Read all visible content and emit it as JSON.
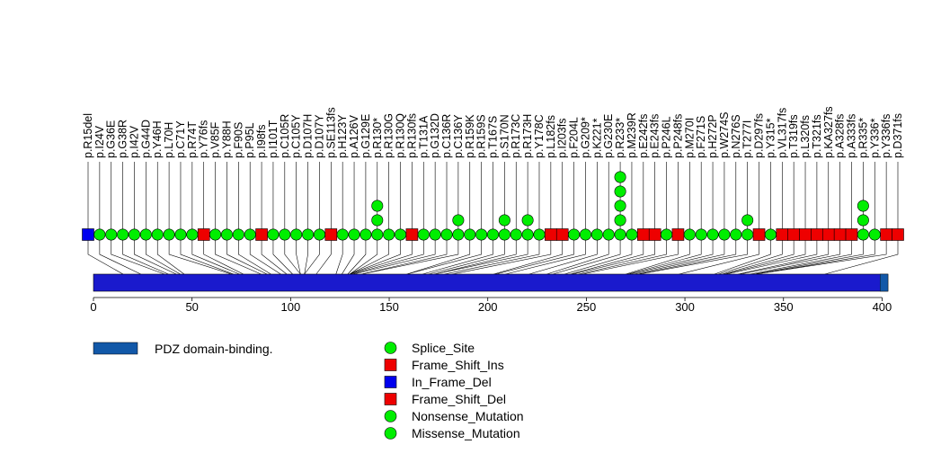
{
  "chart_data": {
    "type": "lollipop",
    "title": "",
    "xlabel": "",
    "ylabel": "",
    "xlim": [
      0,
      403
    ],
    "x_ticks": [
      0,
      50,
      100,
      150,
      200,
      250,
      300,
      350,
      400
    ],
    "protein_length": 403,
    "domains": [
      {
        "name": "PDZ domain-binding.",
        "start": 399,
        "end": 403,
        "color": "#1258A8"
      }
    ],
    "legend": {
      "domain_entries": [
        {
          "label": "PDZ domain-binding.",
          "color": "#1258A8"
        }
      ],
      "mutation_entries": [
        {
          "label": "Splice_Site",
          "shape": "circle",
          "color": "#00EE00"
        },
        {
          "label": "Frame_Shift_Ins",
          "shape": "square",
          "color": "#EE0000"
        },
        {
          "label": "In_Frame_Del",
          "shape": "square",
          "color": "#0000EE"
        },
        {
          "label": "Frame_Shift_Del",
          "shape": "square",
          "color": "#EE0000"
        },
        {
          "label": "Nonsense_Mutation",
          "shape": "circle",
          "color": "#00EE00"
        },
        {
          "label": "Missense_Mutation",
          "shape": "circle",
          "color": "#00EE00"
        }
      ]
    },
    "mutations": [
      {
        "label": "p.R15del",
        "pos": 15,
        "count": 1,
        "shape": "square",
        "color": "#0000EE"
      },
      {
        "label": "p.I24V",
        "pos": 24,
        "count": 1,
        "shape": "circle",
        "color": "#00EE00"
      },
      {
        "label": "p.G36E",
        "pos": 36,
        "count": 1,
        "shape": "circle",
        "color": "#00EE00"
      },
      {
        "label": "p.G38R",
        "pos": 38,
        "count": 1,
        "shape": "circle",
        "color": "#00EE00"
      },
      {
        "label": "p.I42V",
        "pos": 42,
        "count": 1,
        "shape": "circle",
        "color": "#00EE00"
      },
      {
        "label": "p.G44D",
        "pos": 44,
        "count": 1,
        "shape": "circle",
        "color": "#00EE00"
      },
      {
        "label": "p.Y46H",
        "pos": 46,
        "count": 1,
        "shape": "circle",
        "color": "#00EE00"
      },
      {
        "label": "p.L70H",
        "pos": 70,
        "count": 1,
        "shape": "circle",
        "color": "#00EE00"
      },
      {
        "label": "p.C71Y",
        "pos": 71,
        "count": 1,
        "shape": "circle",
        "color": "#00EE00"
      },
      {
        "label": "p.R74T",
        "pos": 74,
        "count": 1,
        "shape": "circle",
        "color": "#00EE00"
      },
      {
        "label": "p.Y76fs",
        "pos": 76,
        "count": 1,
        "shape": "square",
        "color": "#EE0000"
      },
      {
        "label": "p.V85F",
        "pos": 85,
        "count": 1,
        "shape": "circle",
        "color": "#00EE00"
      },
      {
        "label": "p.Y88H",
        "pos": 88,
        "count": 1,
        "shape": "circle",
        "color": "#00EE00"
      },
      {
        "label": "p.F90S",
        "pos": 90,
        "count": 1,
        "shape": "circle",
        "color": "#00EE00"
      },
      {
        "label": "p.P95L",
        "pos": 95,
        "count": 1,
        "shape": "circle",
        "color": "#00EE00"
      },
      {
        "label": "p.I98fs",
        "pos": 98,
        "count": 1,
        "shape": "square",
        "color": "#EE0000"
      },
      {
        "label": "p.I101T",
        "pos": 101,
        "count": 1,
        "shape": "circle",
        "color": "#00EE00"
      },
      {
        "label": "p.C105R",
        "pos": 105,
        "count": 1,
        "shape": "circle",
        "color": "#00EE00"
      },
      {
        "label": "p.C105Y",
        "pos": 105,
        "count": 1,
        "shape": "circle",
        "color": "#00EE00"
      },
      {
        "label": "p.D107H",
        "pos": 107,
        "count": 1,
        "shape": "circle",
        "color": "#00EE00"
      },
      {
        "label": "p.D107Y",
        "pos": 107,
        "count": 1,
        "shape": "circle",
        "color": "#00EE00"
      },
      {
        "label": "p.SE113fs",
        "pos": 113,
        "count": 1,
        "shape": "square",
        "color": "#EE0000"
      },
      {
        "label": "p.H123Y",
        "pos": 123,
        "count": 1,
        "shape": "circle",
        "color": "#00EE00"
      },
      {
        "label": "p.A126V",
        "pos": 126,
        "count": 1,
        "shape": "circle",
        "color": "#00EE00"
      },
      {
        "label": "p.G129E",
        "pos": 129,
        "count": 1,
        "shape": "circle",
        "color": "#00EE00"
      },
      {
        "label": "p.R130*",
        "pos": 130,
        "count": 3,
        "shape": "circle",
        "color": "#00EE00"
      },
      {
        "label": "p.R130G",
        "pos": 130,
        "count": 1,
        "shape": "circle",
        "color": "#00EE00"
      },
      {
        "label": "p.R130Q",
        "pos": 130,
        "count": 1,
        "shape": "circle",
        "color": "#00EE00"
      },
      {
        "label": "p.R130fs",
        "pos": 130,
        "count": 1,
        "shape": "square",
        "color": "#EE0000"
      },
      {
        "label": "p.T131A",
        "pos": 131,
        "count": 1,
        "shape": "circle",
        "color": "#00EE00"
      },
      {
        "label": "p.G132D",
        "pos": 132,
        "count": 1,
        "shape": "circle",
        "color": "#00EE00"
      },
      {
        "label": "p.C136R",
        "pos": 136,
        "count": 1,
        "shape": "circle",
        "color": "#00EE00"
      },
      {
        "label": "p.C136Y",
        "pos": 136,
        "count": 2,
        "shape": "circle",
        "color": "#00EE00"
      },
      {
        "label": "p.R159K",
        "pos": 159,
        "count": 1,
        "shape": "circle",
        "color": "#00EE00"
      },
      {
        "label": "p.R159S",
        "pos": 159,
        "count": 1,
        "shape": "circle",
        "color": "#00EE00"
      },
      {
        "label": "p.T167S",
        "pos": 167,
        "count": 1,
        "shape": "circle",
        "color": "#00EE00"
      },
      {
        "label": "p.S170N",
        "pos": 170,
        "count": 2,
        "shape": "circle",
        "color": "#00EE00"
      },
      {
        "label": "p.R173C",
        "pos": 173,
        "count": 1,
        "shape": "circle",
        "color": "#00EE00"
      },
      {
        "label": "p.R173H",
        "pos": 173,
        "count": 2,
        "shape": "circle",
        "color": "#00EE00"
      },
      {
        "label": "p.Y178C",
        "pos": 178,
        "count": 1,
        "shape": "circle",
        "color": "#00EE00"
      },
      {
        "label": "p.L182fs",
        "pos": 182,
        "count": 1,
        "shape": "square",
        "color": "#EE0000"
      },
      {
        "label": "p.I203fs",
        "pos": 203,
        "count": 1,
        "shape": "square",
        "color": "#EE0000"
      },
      {
        "label": "p.F204L",
        "pos": 204,
        "count": 1,
        "shape": "circle",
        "color": "#00EE00"
      },
      {
        "label": "p.G209*",
        "pos": 209,
        "count": 1,
        "shape": "circle",
        "color": "#00EE00"
      },
      {
        "label": "p.K221*",
        "pos": 221,
        "count": 1,
        "shape": "circle",
        "color": "#00EE00"
      },
      {
        "label": "p.G230E",
        "pos": 230,
        "count": 1,
        "shape": "circle",
        "color": "#00EE00"
      },
      {
        "label": "p.R233*",
        "pos": 233,
        "count": 5,
        "shape": "circle",
        "color": "#00EE00"
      },
      {
        "label": "p.M239R",
        "pos": 239,
        "count": 1,
        "shape": "circle",
        "color": "#00EE00"
      },
      {
        "label": "p.E242fs",
        "pos": 242,
        "count": 1,
        "shape": "square",
        "color": "#EE0000"
      },
      {
        "label": "p.E243fs",
        "pos": 243,
        "count": 1,
        "shape": "square",
        "color": "#EE0000"
      },
      {
        "label": "p.P246L",
        "pos": 246,
        "count": 1,
        "shape": "circle",
        "color": "#00EE00"
      },
      {
        "label": "p.P248fs",
        "pos": 248,
        "count": 1,
        "shape": "square",
        "color": "#EE0000"
      },
      {
        "label": "p.M270I",
        "pos": 270,
        "count": 1,
        "shape": "circle",
        "color": "#00EE00"
      },
      {
        "label": "p.F271S",
        "pos": 271,
        "count": 1,
        "shape": "circle",
        "color": "#00EE00"
      },
      {
        "label": "p.H272P",
        "pos": 272,
        "count": 1,
        "shape": "circle",
        "color": "#00EE00"
      },
      {
        "label": "p.W274S",
        "pos": 274,
        "count": 1,
        "shape": "circle",
        "color": "#00EE00"
      },
      {
        "label": "p.N276S",
        "pos": 276,
        "count": 1,
        "shape": "circle",
        "color": "#00EE00"
      },
      {
        "label": "p.T277I",
        "pos": 277,
        "count": 2,
        "shape": "circle",
        "color": "#00EE00"
      },
      {
        "label": "p.D297fs",
        "pos": 297,
        "count": 1,
        "shape": "square",
        "color": "#EE0000"
      },
      {
        "label": "p.Y315*",
        "pos": 315,
        "count": 1,
        "shape": "circle",
        "color": "#00EE00"
      },
      {
        "label": "p.VL317fs",
        "pos": 317,
        "count": 1,
        "shape": "square",
        "color": "#EE0000"
      },
      {
        "label": "p.T319fs",
        "pos": 319,
        "count": 1,
        "shape": "square",
        "color": "#EE0000"
      },
      {
        "label": "p.L320fs",
        "pos": 320,
        "count": 1,
        "shape": "square",
        "color": "#EE0000"
      },
      {
        "label": "p.T321fs",
        "pos": 321,
        "count": 1,
        "shape": "square",
        "color": "#EE0000"
      },
      {
        "label": "p.KA327fs",
        "pos": 327,
        "count": 1,
        "shape": "square",
        "color": "#EE0000"
      },
      {
        "label": "p.A328fs",
        "pos": 328,
        "count": 1,
        "shape": "square",
        "color": "#EE0000"
      },
      {
        "label": "p.A333fs",
        "pos": 333,
        "count": 1,
        "shape": "square",
        "color": "#EE0000"
      },
      {
        "label": "p.R335*",
        "pos": 335,
        "count": 3,
        "shape": "circle",
        "color": "#00EE00"
      },
      {
        "label": "p.Y336*",
        "pos": 336,
        "count": 1,
        "shape": "circle",
        "color": "#00EE00"
      },
      {
        "label": "p.Y336fs",
        "pos": 336,
        "count": 1,
        "shape": "square",
        "color": "#EE0000"
      },
      {
        "label": "p.D371fs",
        "pos": 371,
        "count": 1,
        "shape": "square",
        "color": "#EE0000"
      }
    ]
  }
}
